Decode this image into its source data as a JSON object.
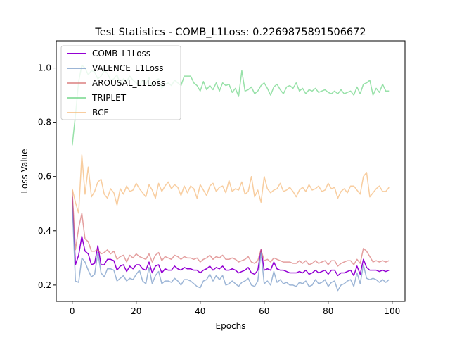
{
  "chart_data": {
    "type": "line",
    "title": "Test Statistics - COMB_L1Loss: 0.2269875891506672",
    "xlabel": "Epochs",
    "ylabel": "Loss Value",
    "xlim": [
      -5,
      104
    ],
    "ylim": [
      0.14,
      1.1
    ],
    "xticks": [
      0,
      20,
      40,
      60,
      80,
      100
    ],
    "yticks": [
      0.2,
      0.4,
      0.6,
      0.8,
      1.0
    ],
    "xtick_labels": [
      "0",
      "20",
      "40",
      "60",
      "80",
      "100"
    ],
    "ytick_labels": [
      "0.2",
      "0.4",
      "0.6",
      "0.8",
      "1.0"
    ],
    "grid": false,
    "legend_position": "top-left",
    "series": [
      {
        "name": "COMB_L1Loss",
        "color": "#9400D3",
        "opacity": 1.0,
        "values": [
          0.525,
          0.275,
          0.31,
          0.38,
          0.325,
          0.315,
          0.275,
          0.28,
          0.345,
          0.275,
          0.275,
          0.295,
          0.295,
          0.29,
          0.255,
          0.27,
          0.275,
          0.25,
          0.27,
          0.26,
          0.275,
          0.275,
          0.26,
          0.255,
          0.285,
          0.245,
          0.27,
          0.275,
          0.245,
          0.26,
          0.255,
          0.255,
          0.27,
          0.26,
          0.255,
          0.265,
          0.26,
          0.26,
          0.255,
          0.255,
          0.245,
          0.255,
          0.26,
          0.27,
          0.255,
          0.265,
          0.26,
          0.27,
          0.255,
          0.255,
          0.26,
          0.255,
          0.245,
          0.25,
          0.255,
          0.265,
          0.245,
          0.24,
          0.255,
          0.33,
          0.255,
          0.26,
          0.255,
          0.285,
          0.26,
          0.255,
          0.255,
          0.25,
          0.245,
          0.245,
          0.245,
          0.25,
          0.245,
          0.255,
          0.24,
          0.245,
          0.255,
          0.245,
          0.25,
          0.255,
          0.24,
          0.255,
          0.255,
          0.235,
          0.245,
          0.245,
          0.25,
          0.255,
          0.235,
          0.27,
          0.24,
          0.295,
          0.265,
          0.255,
          0.255,
          0.255,
          0.25,
          0.255,
          0.25,
          0.255
        ]
      },
      {
        "name": "VALENCE_L1Loss",
        "color": "#7B9CC8",
        "opacity": 0.75,
        "values": [
          0.5,
          0.215,
          0.21,
          0.3,
          0.285,
          0.255,
          0.23,
          0.24,
          0.32,
          0.245,
          0.23,
          0.26,
          0.26,
          0.255,
          0.215,
          0.225,
          0.235,
          0.215,
          0.225,
          0.22,
          0.24,
          0.255,
          0.215,
          0.205,
          0.265,
          0.205,
          0.235,
          0.25,
          0.205,
          0.215,
          0.215,
          0.21,
          0.225,
          0.215,
          0.2,
          0.22,
          0.22,
          0.215,
          0.205,
          0.195,
          0.19,
          0.215,
          0.22,
          0.24,
          0.215,
          0.235,
          0.22,
          0.235,
          0.2,
          0.205,
          0.215,
          0.205,
          0.195,
          0.21,
          0.215,
          0.225,
          0.2,
          0.195,
          0.215,
          0.32,
          0.205,
          0.215,
          0.2,
          0.25,
          0.21,
          0.22,
          0.205,
          0.21,
          0.2,
          0.2,
          0.195,
          0.21,
          0.205,
          0.215,
          0.195,
          0.2,
          0.22,
          0.205,
          0.21,
          0.22,
          0.195,
          0.21,
          0.215,
          0.18,
          0.2,
          0.205,
          0.215,
          0.22,
          0.195,
          0.245,
          0.205,
          0.275,
          0.225,
          0.22,
          0.225,
          0.22,
          0.21,
          0.22,
          0.21,
          0.22
        ]
      },
      {
        "name": "AROUSAL_L1Loss",
        "color": "#D66B6B",
        "opacity": 0.65,
        "values": [
          0.55,
          0.33,
          0.41,
          0.465,
          0.37,
          0.36,
          0.325,
          0.325,
          0.33,
          0.315,
          0.32,
          0.33,
          0.315,
          0.325,
          0.295,
          0.305,
          0.31,
          0.285,
          0.31,
          0.3,
          0.315,
          0.305,
          0.3,
          0.295,
          0.315,
          0.285,
          0.31,
          0.32,
          0.29,
          0.305,
          0.3,
          0.295,
          0.31,
          0.305,
          0.295,
          0.305,
          0.3,
          0.3,
          0.295,
          0.3,
          0.285,
          0.295,
          0.3,
          0.31,
          0.295,
          0.305,
          0.3,
          0.31,
          0.295,
          0.295,
          0.3,
          0.295,
          0.285,
          0.29,
          0.295,
          0.305,
          0.285,
          0.28,
          0.29,
          0.33,
          0.29,
          0.295,
          0.285,
          0.3,
          0.295,
          0.29,
          0.285,
          0.285,
          0.285,
          0.28,
          0.28,
          0.29,
          0.28,
          0.29,
          0.275,
          0.28,
          0.29,
          0.28,
          0.285,
          0.29,
          0.275,
          0.29,
          0.29,
          0.27,
          0.28,
          0.285,
          0.29,
          0.29,
          0.275,
          0.295,
          0.28,
          0.335,
          0.325,
          0.305,
          0.285,
          0.29,
          0.285,
          0.29,
          0.285,
          0.29
        ]
      },
      {
        "name": "TRIPLET",
        "color": "#5FD17A",
        "opacity": 0.65,
        "values": [
          0.715,
          0.825,
          0.95,
          1.01,
          1.0,
          0.975,
          0.99,
          0.985,
          0.96,
          0.97,
          0.99,
          0.98,
          0.955,
          0.96,
          0.975,
          0.94,
          0.96,
          0.95,
          0.97,
          0.955,
          0.945,
          0.935,
          0.955,
          0.94,
          0.965,
          0.93,
          0.955,
          0.96,
          0.925,
          0.94,
          0.945,
          0.935,
          0.955,
          0.945,
          0.935,
          0.97,
          0.97,
          0.97,
          0.945,
          0.935,
          0.915,
          0.95,
          0.92,
          0.935,
          0.92,
          0.945,
          0.915,
          0.945,
          0.935,
          0.94,
          0.91,
          0.925,
          0.895,
          0.99,
          0.915,
          0.92,
          0.93,
          0.905,
          0.915,
          0.935,
          0.945,
          0.925,
          0.9,
          0.93,
          0.94,
          0.92,
          0.905,
          0.93,
          0.935,
          0.925,
          0.945,
          0.915,
          0.925,
          0.905,
          0.92,
          0.915,
          0.925,
          0.91,
          0.915,
          0.92,
          0.91,
          0.905,
          0.915,
          0.905,
          0.92,
          0.905,
          0.91,
          0.915,
          0.9,
          0.93,
          0.905,
          0.94,
          0.945,
          0.955,
          0.9,
          0.925,
          0.91,
          0.94,
          0.915,
          0.915
        ]
      },
      {
        "name": "BCE",
        "color": "#F5B26B",
        "opacity": 0.65,
        "values": [
          0.555,
          0.505,
          0.465,
          0.68,
          0.535,
          0.635,
          0.525,
          0.545,
          0.58,
          0.59,
          0.535,
          0.52,
          0.555,
          0.54,
          0.495,
          0.555,
          0.535,
          0.565,
          0.545,
          0.55,
          0.575,
          0.555,
          0.54,
          0.525,
          0.57,
          0.55,
          0.52,
          0.575,
          0.545,
          0.565,
          0.58,
          0.555,
          0.57,
          0.56,
          0.53,
          0.565,
          0.54,
          0.565,
          0.555,
          0.52,
          0.57,
          0.55,
          0.53,
          0.565,
          0.575,
          0.545,
          0.56,
          0.565,
          0.54,
          0.585,
          0.545,
          0.555,
          0.55,
          0.58,
          0.535,
          0.545,
          0.6,
          0.525,
          0.55,
          0.505,
          0.6,
          0.555,
          0.54,
          0.55,
          0.555,
          0.575,
          0.545,
          0.55,
          0.56,
          0.545,
          0.525,
          0.55,
          0.56,
          0.545,
          0.57,
          0.55,
          0.555,
          0.565,
          0.545,
          0.55,
          0.575,
          0.555,
          0.56,
          0.52,
          0.545,
          0.555,
          0.54,
          0.565,
          0.565,
          0.55,
          0.535,
          0.6,
          0.615,
          0.525,
          0.54,
          0.555,
          0.565,
          0.545,
          0.545,
          0.56
        ]
      }
    ]
  }
}
